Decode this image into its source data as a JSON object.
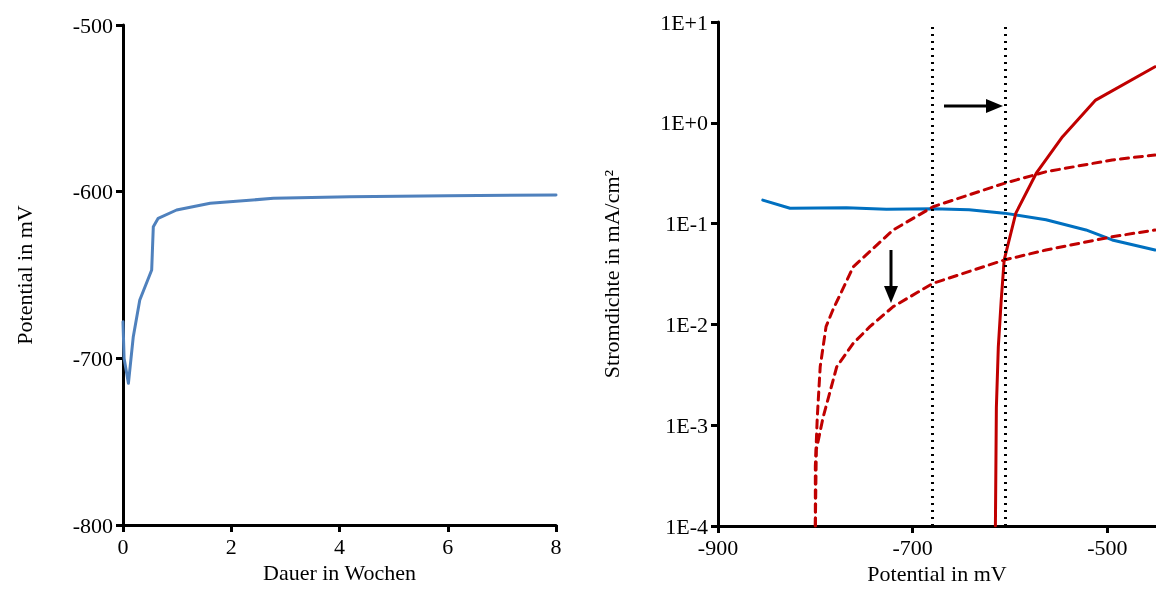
{
  "chart_data": [
    {
      "type": "line",
      "xlabel": "Dauer in Wochen",
      "ylabel": "Potential in mV",
      "xlim": [
        0,
        8
      ],
      "xticks": [
        0,
        2,
        4,
        6,
        8
      ],
      "ylim": [
        -800,
        -500
      ],
      "yticks": [
        -800,
        -700,
        -600,
        -500
      ],
      "grid": false,
      "marker": "none",
      "line_style": "solid",
      "series": [
        {
          "color": "#4f81bd",
          "x": [
            0.0,
            0.02,
            0.1,
            0.19,
            0.31,
            0.53,
            0.56,
            0.65,
            0.99,
            1.61,
            2.78,
            4.19,
            6,
            8
          ],
          "values": [
            -678,
            -700,
            -715,
            -687,
            -665,
            -647,
            -621,
            -616,
            -611,
            -607,
            -604,
            -603,
            -602.5,
            -602
          ]
        }
      ]
    },
    {
      "type": "line",
      "xlabel": "Potential in mV",
      "ylabel": "Stromdichte in mA/cm²",
      "xlim": [
        -900,
        -450
      ],
      "xticks": [
        -900,
        -700,
        -500
      ],
      "ylim": [
        0.0001,
        10
      ],
      "log": "y",
      "yticks": [
        {
          "value": 0.0001,
          "label": "1E-4"
        },
        {
          "value": 0.001,
          "label": "1E-3"
        },
        {
          "value": 0.01,
          "label": "1E-2"
        },
        {
          "value": 0.1,
          "label": "1E-1"
        },
        {
          "value": 1,
          "label": "1E+0"
        },
        {
          "value": 10,
          "label": "1E+1"
        }
      ],
      "grid": false,
      "marker": "none",
      "series": [
        {
          "color": "#0070c0",
          "line_style": "solid",
          "x": [
            -854,
            -826,
            -768,
            -727,
            -679,
            -642,
            -606,
            -563,
            -522,
            -495,
            -451
          ],
          "values": [
            0.171,
            0.142,
            0.144,
            0.139,
            0.14,
            0.137,
            0.127,
            0.109,
            0.0865,
            0.0688,
            0.0547
          ]
        },
        {
          "color": "#c00000",
          "line_style": "solid",
          "x": [
            -615,
            -614,
            -612,
            -609,
            -606,
            -594,
            -573,
            -546,
            -512,
            -451
          ],
          "values": [
            0.0001,
            0.0015,
            0.006,
            0.0175,
            0.0435,
            0.127,
            0.316,
            0.728,
            1.68,
            3.6
          ]
        },
        {
          "color": "#c00000",
          "line_style": "dashed",
          "x": [
            -800,
            -800,
            -798,
            -795,
            -789,
            -782,
            -761,
            -720,
            -679,
            -606,
            -563,
            -495,
            -451
          ],
          "values": [
            0.0001,
            0.00039,
            0.0012,
            0.0038,
            0.0095,
            0.0139,
            0.0373,
            0.0865,
            0.147,
            0.251,
            0.327,
            0.428,
            0.48
          ]
        },
        {
          "color": "#c00000",
          "line_style": "dashed",
          "x": [
            -800,
            -799,
            -792,
            -778,
            -761,
            -744,
            -720,
            -679,
            -606,
            -563,
            -495,
            -451
          ],
          "values": [
            0.0001,
            0.00057,
            0.0012,
            0.0038,
            0.0065,
            0.0095,
            0.015,
            0.0256,
            0.0435,
            0.0547,
            0.074,
            0.0865
          ]
        }
      ],
      "ref_lines": [
        {
          "axis": "x",
          "value": -680,
          "color": "#000000",
          "line_style": "dotted"
        },
        {
          "axis": "x",
          "value": -605,
          "color": "#000000",
          "line_style": "dotted"
        }
      ]
    }
  ]
}
